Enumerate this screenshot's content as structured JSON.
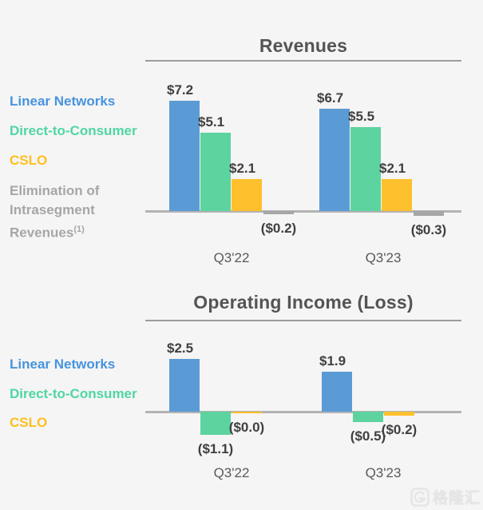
{
  "page": {
    "background": "#F5F5F5"
  },
  "legend_top": {
    "items": [
      {
        "label": "Linear Networks",
        "color": "#4793DE"
      },
      {
        "label": "Direct-to-Consumer",
        "color": "#4FD6A2"
      },
      {
        "label": "CSLO",
        "color": "#FFBF1F"
      },
      {
        "label": "Elimination of Intrasegment Revenues",
        "sup": "(1)",
        "color": "#A6A6A6"
      }
    ]
  },
  "legend_bottom": {
    "items": [
      {
        "label": "Linear Networks",
        "color": "#4793DE"
      },
      {
        "label": "Direct-to-Consumer",
        "color": "#4FD6A2"
      },
      {
        "label": "CSLO",
        "color": "#FFBF1F"
      }
    ]
  },
  "watermark": {
    "text": "格隆汇",
    "logo": "gelonghui-g-logo",
    "color": "#E6E6E6"
  },
  "chart_data": [
    {
      "type": "bar",
      "id": "revenues",
      "title": "Revenues",
      "categories": [
        "Q3'22",
        "Q3'23"
      ],
      "ylim": [
        -0.5,
        8
      ],
      "grid": false,
      "legend_position": "left",
      "series": [
        {
          "name": "Linear Networks",
          "color": "#5B9BD5",
          "values": [
            7.2,
            6.7
          ],
          "labels": [
            "$7.2",
            "$6.7"
          ]
        },
        {
          "name": "Direct-to-Consumer",
          "color": "#5DD3A0",
          "values": [
            5.1,
            5.5
          ],
          "labels": [
            "$5.1",
            "$5.5"
          ]
        },
        {
          "name": "CSLO",
          "color": "#FFC02E",
          "values": [
            2.1,
            2.1
          ],
          "labels": [
            "$2.1",
            "$2.1"
          ]
        },
        {
          "name": "Elimination of Intrasegment Revenues (1)",
          "color": "#A6A6A6",
          "values": [
            -0.2,
            -0.3
          ],
          "labels": [
            "($0.2)",
            "($0.3)"
          ]
        }
      ]
    },
    {
      "type": "bar",
      "id": "operating-income",
      "title": "Operating Income (Loss)",
      "categories": [
        "Q3'22",
        "Q3'23"
      ],
      "ylim": [
        -1.5,
        3
      ],
      "grid": false,
      "legend_position": "left",
      "series": [
        {
          "name": "Linear Networks",
          "color": "#5B9BD5",
          "values": [
            2.5,
            1.9
          ],
          "labels": [
            "$2.5",
            "$1.9"
          ]
        },
        {
          "name": "Direct-to-Consumer",
          "color": "#5DD3A0",
          "values": [
            -1.1,
            -0.5
          ],
          "labels": [
            "($1.1)",
            "($0.5)"
          ]
        },
        {
          "name": "CSLO",
          "color": "#FFC02E",
          "values": [
            -0.0,
            -0.2
          ],
          "labels": [
            "($0.0)",
            "($0.2)"
          ]
        }
      ]
    }
  ]
}
